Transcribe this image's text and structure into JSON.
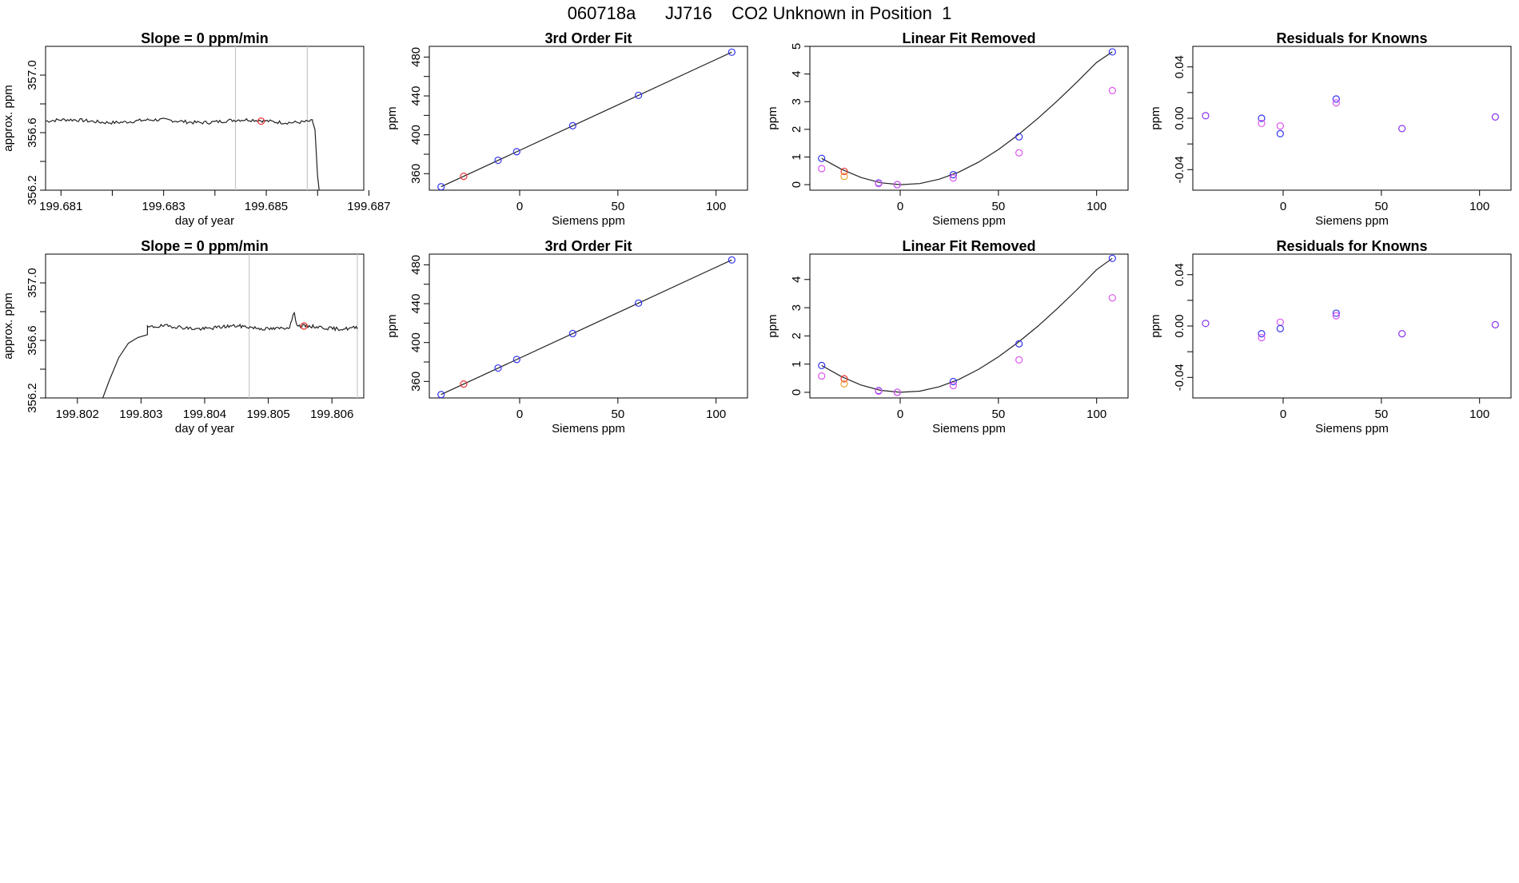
{
  "title": "060718a      JJ716    CO2 Unknown in Position  1",
  "colors": {
    "known": "#3333ee",
    "unknown": "#ee3333",
    "orange": "#f0a030",
    "magenta": "#dd55ee",
    "purple": "#8833ee",
    "line": "#222222",
    "vline": "#c8c8c8"
  },
  "chart_data": [
    {
      "id": "r1-trace",
      "type": "line",
      "title": "Slope =  0  ppm/min",
      "xlabel": "day of year",
      "ylabel": "approx. ppm",
      "xlim": [
        199.6807,
        199.6869
      ],
      "ylim": [
        356.2,
        357.2
      ],
      "xticks": [
        199.681,
        199.682,
        199.683,
        199.684,
        199.685,
        199.686,
        199.687
      ],
      "xticklabels": [
        "199.681",
        "",
        "199.683",
        "",
        "199.685",
        "",
        "199.687"
      ],
      "yticks": [
        356.2,
        356.4,
        356.6,
        356.8,
        357.0
      ],
      "yticklabels": [
        "356.2",
        "",
        "356.6",
        "",
        "357.0"
      ],
      "vlines": [
        199.6844,
        199.6858
      ],
      "trace": {
        "x0": 199.6807,
        "x1": 199.6859,
        "level": 356.68,
        "noise": 0.012,
        "seed": 7,
        "end_x": [
          199.6859,
          199.68595,
          199.686,
          199.68603
        ],
        "end_y": [
          356.68,
          356.62,
          356.3,
          356.2
        ]
      },
      "marker": {
        "x": 199.6849,
        "y": 356.68,
        "color": "unknown"
      }
    },
    {
      "id": "r1-fit",
      "type": "scatter",
      "title": "3rd Order Fit",
      "xlabel": "Siemens ppm",
      "ylabel": "ppm",
      "xlim": [
        -46,
        116
      ],
      "ylim": [
        343,
        491
      ],
      "xticks": [
        0,
        50,
        100
      ],
      "xticklabels": [
        "0",
        "50",
        "100"
      ],
      "yticks": [
        360,
        380,
        400,
        420,
        440,
        460,
        480
      ],
      "yticklabels": [
        "360",
        "",
        "400",
        "",
        "440",
        "",
        "480"
      ],
      "fit": {
        "kind": "linear",
        "x": [
          -40,
          108
        ],
        "y": [
          346.5,
          485
        ]
      },
      "points": [
        {
          "x": -40,
          "y": 346.5,
          "color": "known"
        },
        {
          "x": -28.5,
          "y": 357.3,
          "color": "unknown"
        },
        {
          "x": -11,
          "y": 373.8,
          "color": "known"
        },
        {
          "x": -1.5,
          "y": 382.6,
          "color": "known"
        },
        {
          "x": 27,
          "y": 409.3,
          "color": "known"
        },
        {
          "x": 60.5,
          "y": 440.6,
          "color": "known"
        },
        {
          "x": 108,
          "y": 485,
          "color": "known"
        }
      ]
    },
    {
      "id": "r1-linear",
      "type": "scatter",
      "title": "Linear Fit Removed",
      "xlabel": "Siemens ppm",
      "ylabel": "ppm",
      "xlim": [
        -46,
        116
      ],
      "ylim": [
        -0.2,
        5.0
      ],
      "xticks": [
        0,
        50,
        100
      ],
      "xticklabels": [
        "0",
        "50",
        "100"
      ],
      "yticks": [
        0,
        1,
        2,
        3,
        4,
        5
      ],
      "yticklabels": [
        "0",
        "1",
        "2",
        "3",
        "4",
        "5"
      ],
      "fit": {
        "kind": "curve",
        "x": [
          -40,
          -30,
          -20,
          -10,
          0,
          10,
          20,
          30,
          40,
          50,
          60,
          70,
          80,
          90,
          100,
          108
        ],
        "y": [
          0.95,
          0.56,
          0.26,
          0.07,
          0.0,
          0.04,
          0.2,
          0.46,
          0.82,
          1.27,
          1.8,
          2.39,
          3.03,
          3.71,
          4.42,
          4.8
        ]
      },
      "points": [
        {
          "x": -40,
          "y": 0.95,
          "color": "known"
        },
        {
          "x": -40,
          "y": 0.58,
          "color": "magenta"
        },
        {
          "x": -28.5,
          "y": 0.48,
          "color": "unknown"
        },
        {
          "x": -28.5,
          "y": 0.3,
          "color": "orange"
        },
        {
          "x": -11,
          "y": 0.06,
          "color": "known"
        },
        {
          "x": -11,
          "y": 0.04,
          "color": "magenta"
        },
        {
          "x": -1.5,
          "y": 0.0,
          "color": "known"
        },
        {
          "x": -1.5,
          "y": 0.0,
          "color": "magenta"
        },
        {
          "x": 27,
          "y": 0.36,
          "color": "known"
        },
        {
          "x": 27,
          "y": 0.24,
          "color": "magenta"
        },
        {
          "x": 60.5,
          "y": 1.73,
          "color": "known"
        },
        {
          "x": 60.5,
          "y": 1.15,
          "color": "magenta"
        },
        {
          "x": 108,
          "y": 4.8,
          "color": "known"
        },
        {
          "x": 108,
          "y": 3.4,
          "color": "magenta"
        }
      ]
    },
    {
      "id": "r1-resid",
      "type": "scatter",
      "title": "Residuals for Knowns",
      "xlabel": "Siemens ppm",
      "ylabel": "ppm",
      "xlim": [
        -46,
        116
      ],
      "ylim": [
        -0.056,
        0.056
      ],
      "xticks": [
        0,
        50,
        100
      ],
      "xticklabels": [
        "0",
        "50",
        "100"
      ],
      "yticks": [
        -0.04,
        -0.02,
        0.0,
        0.02,
        0.04
      ],
      "yticklabels": [
        "-0.04",
        "",
        "0.00",
        "",
        "0.04"
      ],
      "points": [
        {
          "x": -39.5,
          "y": 0.002,
          "color": "purple"
        },
        {
          "x": -11,
          "y": 0.0,
          "color": "known"
        },
        {
          "x": -11,
          "y": -0.004,
          "color": "magenta"
        },
        {
          "x": -1.5,
          "y": -0.006,
          "color": "magenta"
        },
        {
          "x": -1.5,
          "y": -0.012,
          "color": "known"
        },
        {
          "x": 27,
          "y": 0.015,
          "color": "known"
        },
        {
          "x": 27,
          "y": 0.012,
          "color": "magenta"
        },
        {
          "x": 60.5,
          "y": -0.008,
          "color": "purple"
        },
        {
          "x": 108,
          "y": 0.001,
          "color": "purple"
        }
      ]
    },
    {
      "id": "r2-trace",
      "type": "line",
      "title": "Slope =  0  ppm/min",
      "xlabel": "day of year",
      "ylabel": "approx. ppm",
      "xlim": [
        199.8015,
        199.8065
      ],
      "ylim": [
        356.2,
        357.2
      ],
      "xticks": [
        199.802,
        199.803,
        199.804,
        199.805,
        199.806
      ],
      "xticklabels": [
        "199.802",
        "199.803",
        "199.804",
        "199.805",
        "199.806"
      ],
      "yticks": [
        356.2,
        356.4,
        356.6,
        356.8,
        357.0
      ],
      "yticklabels": [
        "356.2",
        "",
        "356.6",
        "",
        "357.0"
      ],
      "vlines": [
        199.8047,
        199.8064
      ],
      "trace": {
        "x0": 199.8031,
        "x1": 199.8064,
        "level": 356.69,
        "noise": 0.012,
        "seed": 19,
        "start_x": [
          199.8024,
          199.8025,
          199.80265,
          199.8028,
          199.80295,
          199.8031
        ],
        "start_y": [
          356.2,
          356.32,
          356.48,
          356.58,
          356.62,
          356.64
        ],
        "bump": {
          "x": 199.8054,
          "h": 0.09
        }
      },
      "marker": {
        "x": 199.80556,
        "y": 356.7,
        "color": "unknown"
      }
    },
    {
      "id": "r2-fit",
      "type": "scatter",
      "title": "3rd Order Fit",
      "xlabel": "Siemens ppm",
      "ylabel": "ppm",
      "xlim": [
        -46,
        116
      ],
      "ylim": [
        343,
        491
      ],
      "xticks": [
        0,
        50,
        100
      ],
      "xticklabels": [
        "0",
        "50",
        "100"
      ],
      "yticks": [
        360,
        380,
        400,
        420,
        440,
        460,
        480
      ],
      "yticklabels": [
        "360",
        "",
        "400",
        "",
        "440",
        "",
        "480"
      ],
      "fit": {
        "kind": "linear",
        "x": [
          -40,
          108
        ],
        "y": [
          346.5,
          485
        ]
      },
      "points": [
        {
          "x": -40,
          "y": 346.5,
          "color": "known"
        },
        {
          "x": -28.5,
          "y": 357.3,
          "color": "unknown"
        },
        {
          "x": -11,
          "y": 373.8,
          "color": "known"
        },
        {
          "x": -1.5,
          "y": 382.6,
          "color": "known"
        },
        {
          "x": 27,
          "y": 409.3,
          "color": "known"
        },
        {
          "x": 60.5,
          "y": 440.6,
          "color": "known"
        },
        {
          "x": 108,
          "y": 485,
          "color": "known"
        }
      ]
    },
    {
      "id": "r2-linear",
      "type": "scatter",
      "title": "Linear Fit Removed",
      "xlabel": "Siemens ppm",
      "ylabel": "ppm",
      "xlim": [
        -46,
        116
      ],
      "ylim": [
        -0.2,
        4.9
      ],
      "xticks": [
        0,
        50,
        100
      ],
      "xticklabels": [
        "0",
        "50",
        "100"
      ],
      "yticks": [
        0,
        1,
        2,
        3,
        4
      ],
      "yticklabels": [
        "0",
        "1",
        "2",
        "3",
        "4"
      ],
      "fit": {
        "kind": "curve",
        "x": [
          -40,
          -30,
          -20,
          -10,
          0,
          10,
          20,
          30,
          40,
          50,
          60,
          70,
          80,
          90,
          100,
          108
        ],
        "y": [
          0.95,
          0.56,
          0.26,
          0.07,
          0.0,
          0.04,
          0.2,
          0.46,
          0.82,
          1.26,
          1.77,
          2.34,
          2.97,
          3.64,
          4.35,
          4.75
        ]
      },
      "points": [
        {
          "x": -40,
          "y": 0.95,
          "color": "known"
        },
        {
          "x": -40,
          "y": 0.58,
          "color": "magenta"
        },
        {
          "x": -28.5,
          "y": 0.48,
          "color": "unknown"
        },
        {
          "x": -28.5,
          "y": 0.3,
          "color": "orange"
        },
        {
          "x": -11,
          "y": 0.06,
          "color": "known"
        },
        {
          "x": -11,
          "y": 0.04,
          "color": "magenta"
        },
        {
          "x": -1.5,
          "y": 0.0,
          "color": "known"
        },
        {
          "x": -1.5,
          "y": 0.0,
          "color": "magenta"
        },
        {
          "x": 27,
          "y": 0.38,
          "color": "known"
        },
        {
          "x": 27,
          "y": 0.24,
          "color": "magenta"
        },
        {
          "x": 60.5,
          "y": 1.72,
          "color": "known"
        },
        {
          "x": 60.5,
          "y": 1.15,
          "color": "magenta"
        },
        {
          "x": 108,
          "y": 4.75,
          "color": "known"
        },
        {
          "x": 108,
          "y": 3.35,
          "color": "magenta"
        }
      ]
    },
    {
      "id": "r2-resid",
      "type": "scatter",
      "title": "Residuals for Knowns",
      "xlabel": "Siemens ppm",
      "ylabel": "ppm",
      "xlim": [
        -46,
        116
      ],
      "ylim": [
        -0.056,
        0.056
      ],
      "xticks": [
        0,
        50,
        100
      ],
      "xticklabels": [
        "0",
        "50",
        "100"
      ],
      "yticks": [
        -0.04,
        -0.02,
        0.0,
        0.02,
        0.04
      ],
      "yticklabels": [
        "-0.04",
        "",
        "0.00",
        "",
        "0.04"
      ],
      "points": [
        {
          "x": -39.5,
          "y": 0.002,
          "color": "purple"
        },
        {
          "x": -11,
          "y": -0.006,
          "color": "known"
        },
        {
          "x": -11,
          "y": -0.009,
          "color": "magenta"
        },
        {
          "x": -1.5,
          "y": 0.003,
          "color": "magenta"
        },
        {
          "x": -1.5,
          "y": -0.002,
          "color": "known"
        },
        {
          "x": 27,
          "y": 0.01,
          "color": "known"
        },
        {
          "x": 27,
          "y": 0.008,
          "color": "magenta"
        },
        {
          "x": 60.5,
          "y": -0.006,
          "color": "purple"
        },
        {
          "x": 108,
          "y": 0.001,
          "color": "purple"
        }
      ]
    }
  ]
}
